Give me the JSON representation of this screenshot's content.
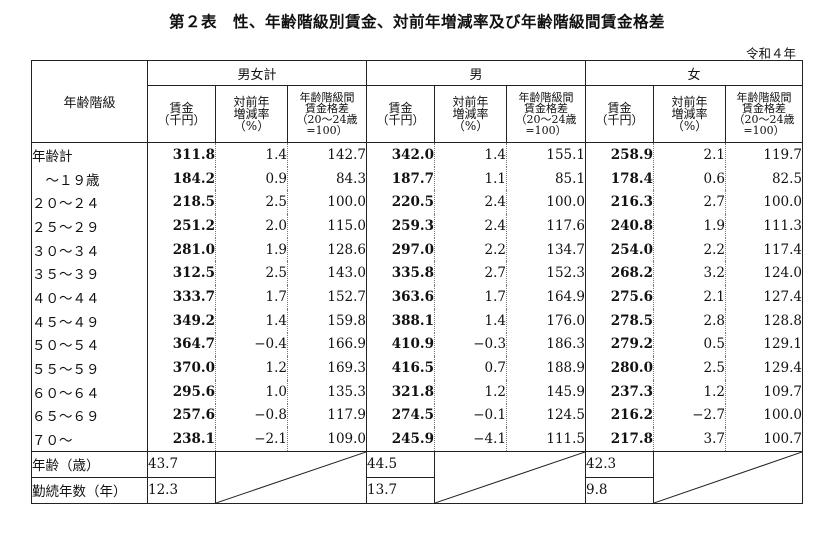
{
  "title": "第２表　性、年齢階級別賃金、対前年増減率及び年齢階級間賃金格差",
  "era": "令和４年",
  "headers": {
    "age_class": "年齢階級",
    "groups": [
      "男女計",
      "男",
      "女"
    ],
    "wage_l1": "賃金",
    "wage_l2": "（千円）",
    "rate_l1": "対前年",
    "rate_l2": "増減率",
    "rate_l3": "（%）",
    "gap_l1": "年齢階級間",
    "gap_l2": "賃金格差",
    "gap_l3": "（20～24歳",
    "gap_l4": "=100）"
  },
  "rows": [
    {
      "label": "年齢計",
      "v": [
        "311.8",
        "1.4",
        "142.7",
        "342.0",
        "1.4",
        "155.1",
        "258.9",
        "2.1",
        "119.7"
      ]
    },
    {
      "label": "　～１９歳",
      "v": [
        "184.2",
        "0.9",
        "84.3",
        "187.7",
        "1.1",
        "85.1",
        "178.4",
        "0.6",
        "82.5"
      ]
    },
    {
      "label": "２０～２４",
      "v": [
        "218.5",
        "2.5",
        "100.0",
        "220.5",
        "2.4",
        "100.0",
        "216.3",
        "2.7",
        "100.0"
      ]
    },
    {
      "label": "２５～２９",
      "v": [
        "251.2",
        "2.0",
        "115.0",
        "259.3",
        "2.4",
        "117.6",
        "240.8",
        "1.9",
        "111.3"
      ]
    },
    {
      "label": "３０～３４",
      "v": [
        "281.0",
        "1.9",
        "128.6",
        "297.0",
        "2.2",
        "134.7",
        "254.0",
        "2.2",
        "117.4"
      ]
    },
    {
      "label": "３５～３９",
      "v": [
        "312.5",
        "2.5",
        "143.0",
        "335.8",
        "2.7",
        "152.3",
        "268.2",
        "3.2",
        "124.0"
      ]
    },
    {
      "label": "４０～４４",
      "v": [
        "333.7",
        "1.7",
        "152.7",
        "363.6",
        "1.7",
        "164.9",
        "275.6",
        "2.1",
        "127.4"
      ]
    },
    {
      "label": "４５～４９",
      "v": [
        "349.2",
        "1.4",
        "159.8",
        "388.1",
        "1.4",
        "176.0",
        "278.5",
        "2.8",
        "128.8"
      ]
    },
    {
      "label": "５０～５４",
      "v": [
        "364.7",
        "−0.4",
        "166.9",
        "410.9",
        "−0.3",
        "186.3",
        "279.2",
        "0.5",
        "129.1"
      ]
    },
    {
      "label": "５５～５９",
      "v": [
        "370.0",
        "1.2",
        "169.3",
        "416.5",
        "0.7",
        "188.9",
        "280.0",
        "2.5",
        "129.4"
      ]
    },
    {
      "label": "６０～６４",
      "v": [
        "295.6",
        "1.0",
        "135.3",
        "321.8",
        "1.2",
        "145.9",
        "237.3",
        "1.2",
        "109.7"
      ]
    },
    {
      "label": "６５～６９",
      "v": [
        "257.6",
        "−0.8",
        "117.9",
        "274.5",
        "−0.1",
        "124.5",
        "216.2",
        "−2.7",
        "100.0"
      ]
    },
    {
      "label": "７０～",
      "v": [
        "238.1",
        "−2.1",
        "109.0",
        "245.9",
        "−4.1",
        "111.5",
        "217.8",
        "3.7",
        "100.7"
      ]
    }
  ],
  "footer": [
    {
      "label": "年齢（歳）",
      "v": [
        "43.7",
        "44.5",
        "42.3"
      ]
    },
    {
      "label": "勤続年数（年）",
      "v": [
        "12.3",
        "13.7",
        "9.8"
      ]
    }
  ]
}
